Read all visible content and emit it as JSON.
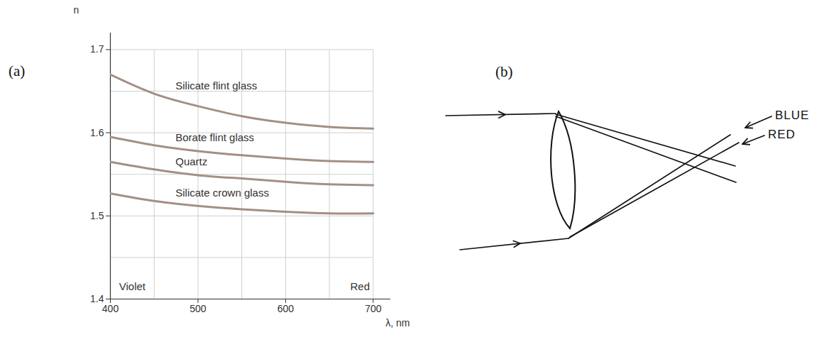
{
  "chart_data": {
    "type": "line",
    "panel": "(a)",
    "x_label": "λ, nm",
    "y_label": "n",
    "x": [
      400,
      450,
      500,
      550,
      600,
      650,
      700
    ],
    "series": [
      {
        "name": "Silicate flint glass",
        "color": "#a38f85",
        "values": [
          1.67,
          1.647,
          1.632,
          1.62,
          1.612,
          1.607,
          1.605
        ]
      },
      {
        "name": "Borate flint glass",
        "color": "#a38f85",
        "values": [
          1.595,
          1.585,
          1.578,
          1.573,
          1.569,
          1.566,
          1.565
        ]
      },
      {
        "name": "Quartz",
        "color": "#a38f85",
        "values": [
          1.565,
          1.556,
          1.549,
          1.545,
          1.541,
          1.538,
          1.537
        ]
      },
      {
        "name": "Silicate crown glass",
        "color": "#a38f85",
        "values": [
          1.527,
          1.518,
          1.512,
          1.508,
          1.505,
          1.503,
          1.503
        ]
      }
    ],
    "xlim": [
      400,
      720
    ],
    "ylim": [
      1.4,
      1.72
    ],
    "xticks": [
      400,
      500,
      600,
      700
    ],
    "yticks": [
      1.4,
      1.5,
      1.6,
      1.7
    ],
    "grid": true,
    "annotations": [
      {
        "text": "Violet",
        "x": 425,
        "y": 1.415
      },
      {
        "text": "Red",
        "x": 685,
        "y": 1.415
      }
    ]
  },
  "diagram": {
    "panel": "(b)",
    "labels": [
      "BLUE",
      "RED"
    ]
  }
}
